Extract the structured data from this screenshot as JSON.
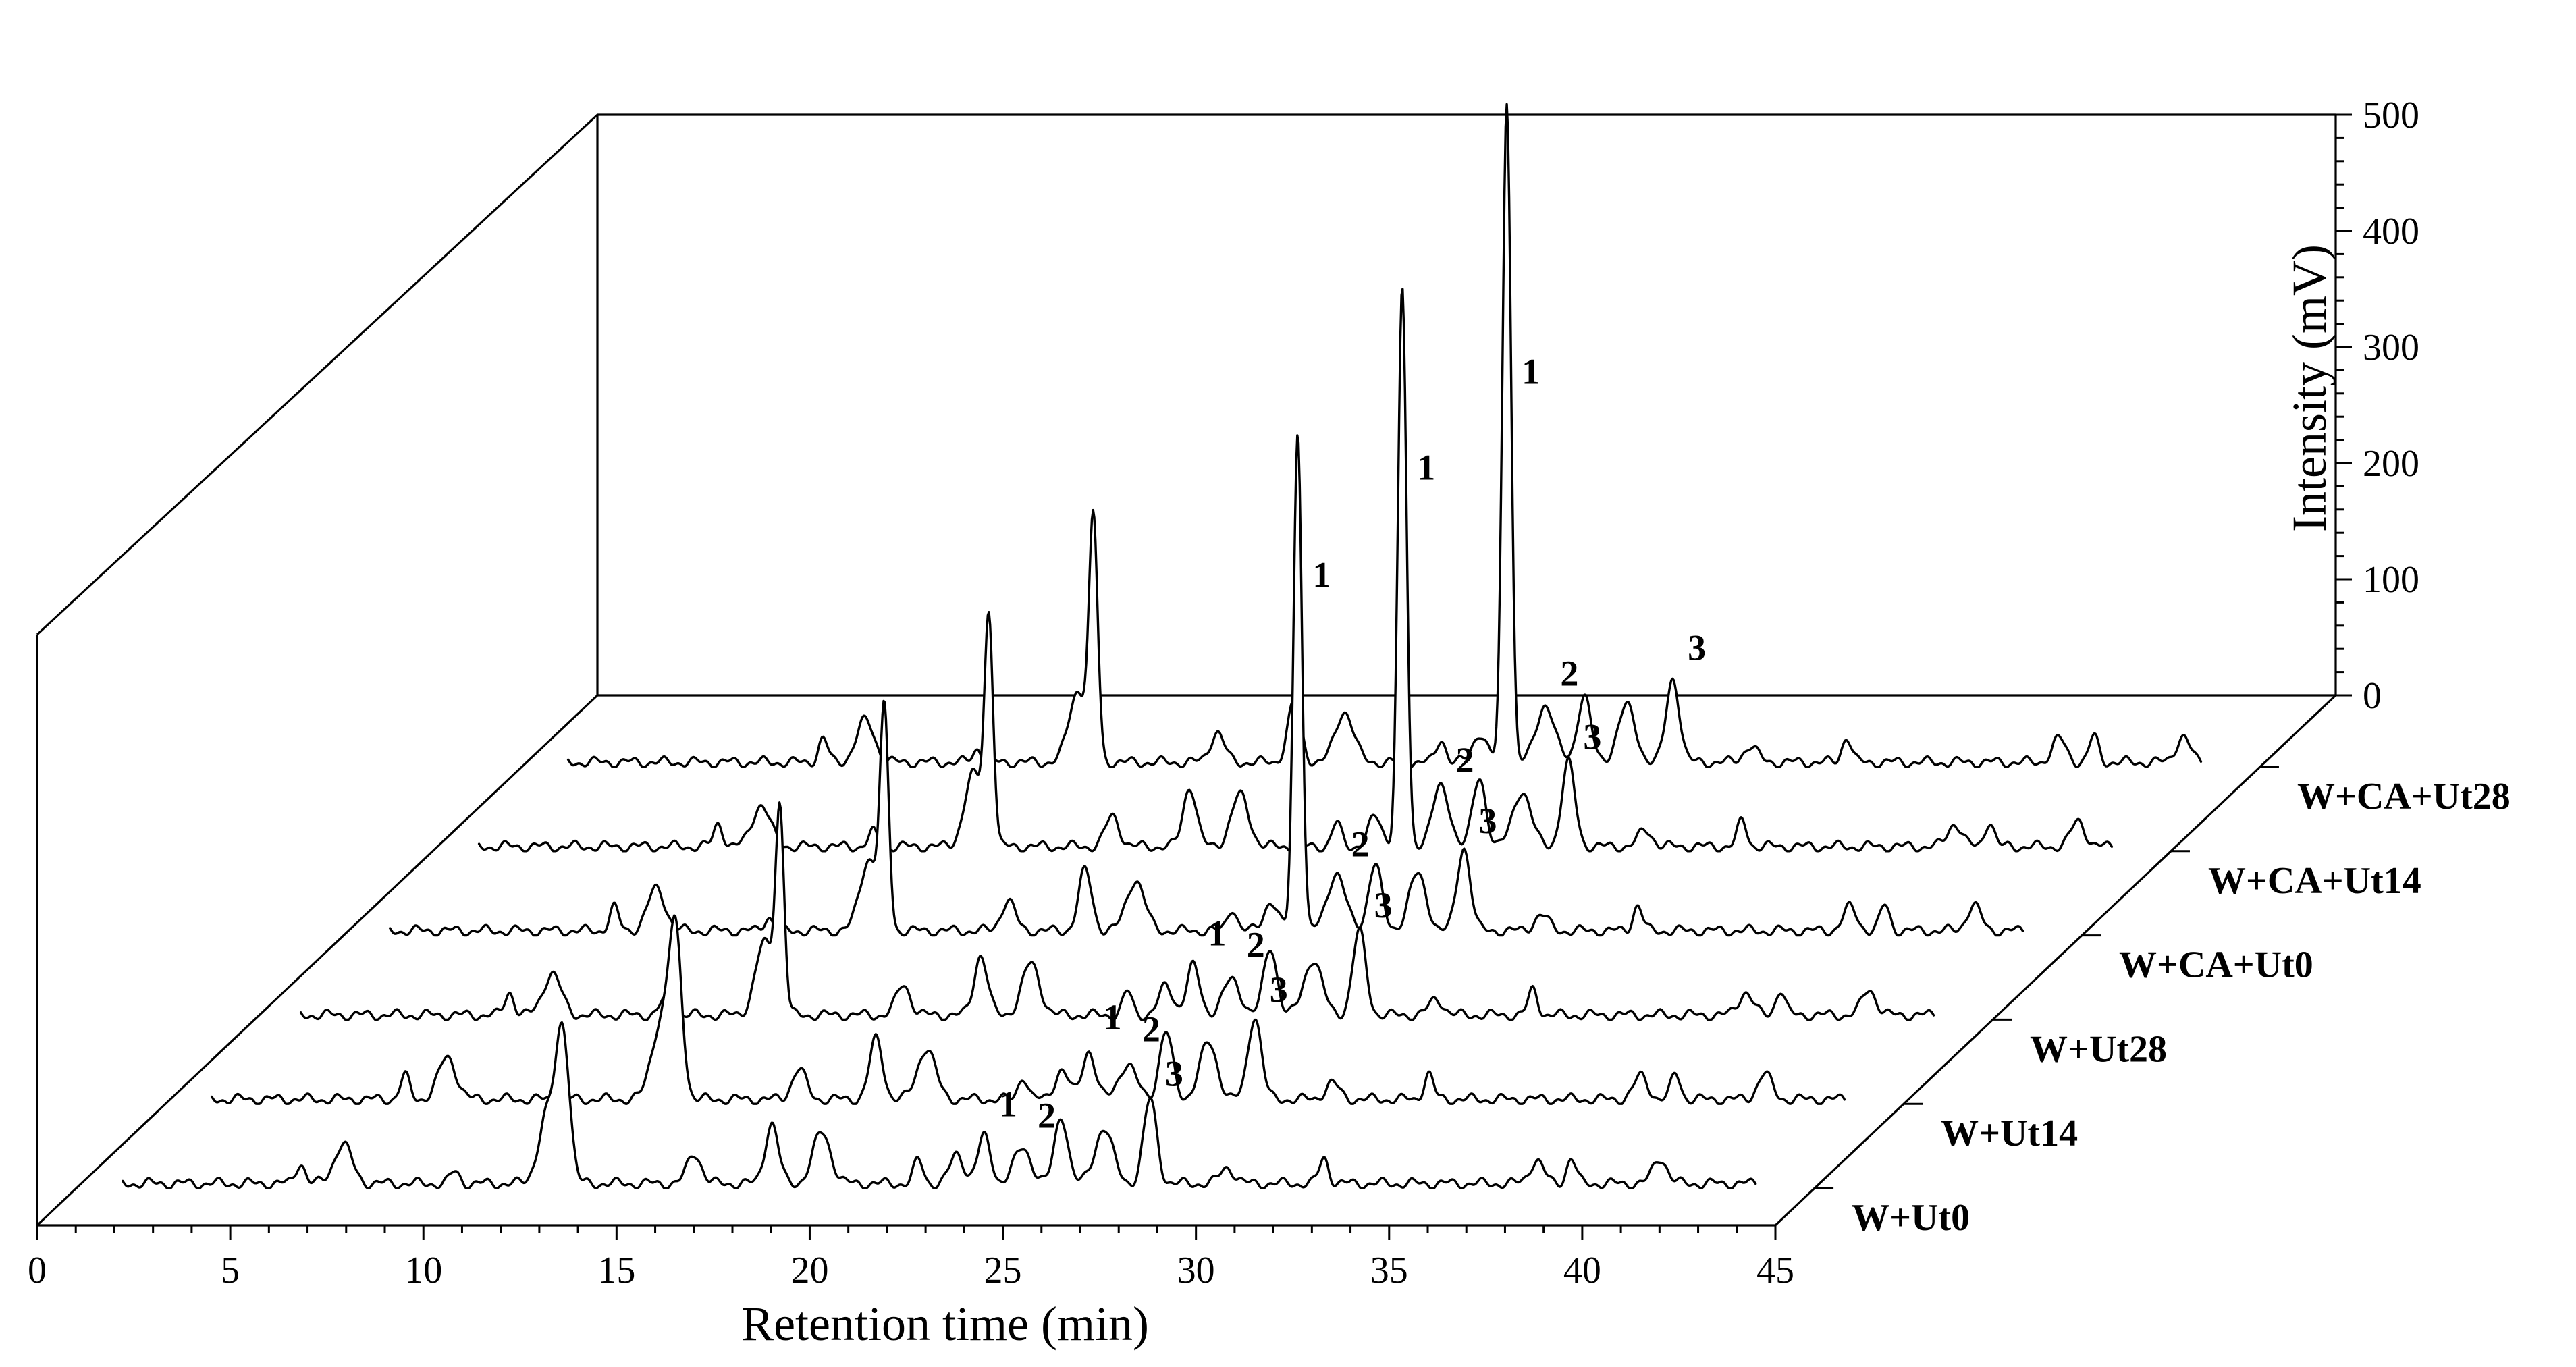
{
  "chart_data": {
    "type": "line",
    "variant": "3d-waterfall",
    "xlabel": "Retention time (min)",
    "zlabel": "Intensity (mV)",
    "xlim": [
      0,
      45
    ],
    "zlim": [
      0,
      500
    ],
    "x_ticks": [
      "0",
      "5",
      "10",
      "15",
      "20",
      "25",
      "30",
      "35",
      "40",
      "45"
    ],
    "z_ticks": [
      "0",
      "100",
      "200",
      "300",
      "400",
      "500"
    ],
    "series": [
      {
        "name": "W+Ut0",
        "peaks": [
          [
            5.8,
            18
          ],
          [
            6.9,
            34
          ],
          [
            9.8,
            10
          ],
          [
            12.2,
            60
          ],
          [
            12.6,
            125
          ],
          [
            16.0,
            26
          ],
          [
            18.0,
            52
          ],
          [
            19.3,
            44
          ],
          [
            21.8,
            20
          ],
          [
            22.8,
            25
          ],
          [
            23.5,
            40
          ],
          [
            24.5,
            30
          ],
          [
            25.5,
            58
          ],
          [
            26.6,
            48
          ],
          [
            27.8,
            72
          ],
          [
            29.8,
            14
          ],
          [
            32.3,
            22
          ],
          [
            37.8,
            20
          ],
          [
            38.7,
            22
          ],
          [
            41.0,
            22
          ]
        ],
        "labels": [
          {
            "text": "1",
            "x": 23.5,
            "z": 62
          },
          {
            "text": "2",
            "x": 24.5,
            "z": 52
          },
          {
            "text": "3",
            "x": 27.8,
            "z": 88
          }
        ]
      },
      {
        "name": "W+Ut14",
        "peaks": [
          [
            6.2,
            20
          ],
          [
            7.3,
            36
          ],
          [
            10.2,
            10
          ],
          [
            12.8,
            62
          ],
          [
            13.2,
            140
          ],
          [
            16.4,
            26
          ],
          [
            18.4,
            52
          ],
          [
            19.7,
            44
          ],
          [
            22.2,
            20
          ],
          [
            23.2,
            25
          ],
          [
            23.9,
            42
          ],
          [
            24.9,
            30
          ],
          [
            25.9,
            58
          ],
          [
            27.0,
            48
          ],
          [
            28.2,
            72
          ],
          [
            30.2,
            14
          ],
          [
            32.7,
            22
          ],
          [
            38.2,
            20
          ],
          [
            39.1,
            22
          ],
          [
            41.4,
            22
          ]
        ],
        "labels": [
          {
            "text": "1",
            "x": 23.9,
            "z": 64
          },
          {
            "text": "2",
            "x": 24.9,
            "z": 54
          },
          {
            "text": "3",
            "x": 28.2,
            "z": 88
          }
        ]
      },
      {
        "name": "W+Ut28",
        "peaks": [
          [
            6.6,
            20
          ],
          [
            7.7,
            36
          ],
          [
            10.6,
            12
          ],
          [
            13.2,
            62
          ],
          [
            13.6,
            170
          ],
          [
            16.8,
            26
          ],
          [
            18.8,
            52
          ],
          [
            20.1,
            44
          ],
          [
            22.6,
            20
          ],
          [
            23.6,
            25
          ],
          [
            24.3,
            42
          ],
          [
            25.3,
            30
          ],
          [
            26.3,
            58
          ],
          [
            27.4,
            48
          ],
          [
            28.6,
            72
          ],
          [
            30.6,
            14
          ],
          [
            33.1,
            22
          ],
          [
            38.6,
            20
          ],
          [
            39.5,
            22
          ],
          [
            41.8,
            22
          ]
        ],
        "labels": [
          {
            "text": "1",
            "x": 24.3,
            "z": 64
          },
          {
            "text": "2",
            "x": 25.3,
            "z": 54
          },
          {
            "text": "3",
            "x": 28.6,
            "z": 88
          }
        ]
      },
      {
        "name": "W+CA+Ut0",
        "peaks": [
          [
            7.0,
            20
          ],
          [
            8.1,
            36
          ],
          [
            11.0,
            12
          ],
          [
            13.6,
            62
          ],
          [
            14.0,
            180
          ],
          [
            17.2,
            26
          ],
          [
            19.2,
            52
          ],
          [
            20.5,
            44
          ],
          [
            23.0,
            20
          ],
          [
            24.0,
            25
          ],
          [
            24.7,
            430
          ],
          [
            25.7,
            50
          ],
          [
            26.7,
            58
          ],
          [
            27.8,
            48
          ],
          [
            29.0,
            72
          ],
          [
            31.0,
            14
          ],
          [
            33.5,
            22
          ],
          [
            39.0,
            20
          ],
          [
            39.9,
            22
          ],
          [
            42.2,
            22
          ]
        ],
        "labels": [
          {
            "text": "1",
            "x": 24.7,
            "z": 300
          },
          {
            "text": "2",
            "x": 25.7,
            "z": 68
          },
          {
            "text": "3",
            "x": 29.0,
            "z": 88
          }
        ]
      },
      {
        "name": "W+CA+Ut14",
        "peaks": [
          [
            7.4,
            20
          ],
          [
            8.5,
            36
          ],
          [
            11.4,
            12
          ],
          [
            14.0,
            62
          ],
          [
            14.4,
            190
          ],
          [
            17.6,
            26
          ],
          [
            19.6,
            52
          ],
          [
            20.9,
            44
          ],
          [
            23.4,
            20
          ],
          [
            24.4,
            25
          ],
          [
            25.1,
            480
          ],
          [
            26.1,
            50
          ],
          [
            27.1,
            58
          ],
          [
            28.2,
            48
          ],
          [
            29.4,
            72
          ],
          [
            31.4,
            14
          ],
          [
            33.9,
            22
          ],
          [
            39.4,
            20
          ],
          [
            40.3,
            22
          ],
          [
            42.6,
            22
          ]
        ],
        "labels": [
          {
            "text": "1",
            "x": 25.1,
            "z": 320
          },
          {
            "text": "2",
            "x": 26.1,
            "z": 68
          },
          {
            "text": "3",
            "x": 29.4,
            "z": 88
          }
        ]
      },
      {
        "name": "W+CA+Ut28",
        "peaks": [
          [
            7.8,
            20
          ],
          [
            8.9,
            36
          ],
          [
            11.8,
            12
          ],
          [
            14.4,
            62
          ],
          [
            14.8,
            200
          ],
          [
            18.0,
            26
          ],
          [
            20.0,
            52
          ],
          [
            21.3,
            44
          ],
          [
            23.8,
            20
          ],
          [
            24.8,
            25
          ],
          [
            25.5,
            570
          ],
          [
            26.5,
            50
          ],
          [
            27.5,
            58
          ],
          [
            28.6,
            48
          ],
          [
            29.8,
            72
          ],
          [
            31.8,
            14
          ],
          [
            34.3,
            22
          ],
          [
            39.8,
            20
          ],
          [
            40.7,
            22
          ],
          [
            43.0,
            22
          ]
        ],
        "labels": [
          {
            "text": "1",
            "x": 25.5,
            "z": 330
          },
          {
            "text": "2",
            "x": 26.5,
            "z": 70
          },
          {
            "text": "3",
            "x": 29.8,
            "z": 92
          }
        ]
      }
    ]
  }
}
